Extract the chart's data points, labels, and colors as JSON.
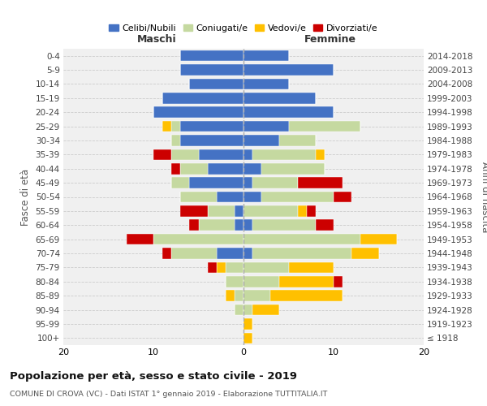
{
  "age_groups": [
    "100+",
    "95-99",
    "90-94",
    "85-89",
    "80-84",
    "75-79",
    "70-74",
    "65-69",
    "60-64",
    "55-59",
    "50-54",
    "45-49",
    "40-44",
    "35-39",
    "30-34",
    "25-29",
    "20-24",
    "15-19",
    "10-14",
    "5-9",
    "0-4"
  ],
  "birth_years": [
    "≤ 1918",
    "1919-1923",
    "1924-1928",
    "1929-1933",
    "1934-1938",
    "1939-1943",
    "1944-1948",
    "1949-1953",
    "1954-1958",
    "1959-1963",
    "1964-1968",
    "1969-1973",
    "1974-1978",
    "1979-1983",
    "1984-1988",
    "1989-1993",
    "1994-1998",
    "1999-2003",
    "2004-2008",
    "2009-2013",
    "2014-2018"
  ],
  "colors": {
    "celibi": "#4472c4",
    "coniugati": "#c5d9a0",
    "vedovi": "#ffc000",
    "divorziati": "#cc0000",
    "background": "#f0f0f0",
    "grid": "#cccccc"
  },
  "maschi": {
    "celibi": [
      0,
      0,
      0,
      0,
      0,
      0,
      3,
      0,
      1,
      1,
      3,
      6,
      4,
      5,
      7,
      7,
      10,
      9,
      6,
      7,
      7
    ],
    "coniugati": [
      0,
      0,
      1,
      1,
      2,
      2,
      5,
      10,
      4,
      3,
      4,
      2,
      3,
      3,
      1,
      1,
      0,
      0,
      0,
      0,
      0
    ],
    "vedovi": [
      0,
      0,
      0,
      1,
      0,
      1,
      0,
      0,
      0,
      0,
      0,
      0,
      0,
      0,
      0,
      1,
      0,
      0,
      0,
      0,
      0
    ],
    "divorziati": [
      0,
      0,
      0,
      0,
      0,
      1,
      1,
      3,
      1,
      3,
      0,
      0,
      1,
      2,
      0,
      0,
      0,
      0,
      0,
      0,
      0
    ]
  },
  "femmine": {
    "celibi": [
      0,
      0,
      0,
      0,
      0,
      0,
      1,
      0,
      1,
      0,
      2,
      1,
      2,
      1,
      4,
      5,
      10,
      8,
      5,
      10,
      5
    ],
    "coniugati": [
      0,
      0,
      1,
      3,
      4,
      5,
      11,
      13,
      7,
      6,
      8,
      5,
      7,
      7,
      4,
      8,
      0,
      0,
      0,
      0,
      0
    ],
    "vedovi": [
      1,
      1,
      3,
      8,
      6,
      5,
      3,
      4,
      0,
      1,
      0,
      0,
      0,
      1,
      0,
      0,
      0,
      0,
      0,
      0,
      0
    ],
    "divorziati": [
      0,
      0,
      0,
      0,
      1,
      0,
      0,
      0,
      2,
      1,
      2,
      5,
      0,
      0,
      0,
      0,
      0,
      0,
      0,
      0,
      0
    ]
  },
  "xlim": 20,
  "title_main": "Popolazione per età, sesso e stato civile - 2019",
  "title_sub": "COMUNE DI CROVA (VC) - Dati ISTAT 1° gennaio 2019 - Elaborazione TUTTITALIA.IT",
  "ylabel_left": "Fasce di età",
  "ylabel_right": "Anni di nascita",
  "legend_labels": [
    "Celibi/Nubili",
    "Coniugati/e",
    "Vedovi/e",
    "Divorziati/e"
  ]
}
